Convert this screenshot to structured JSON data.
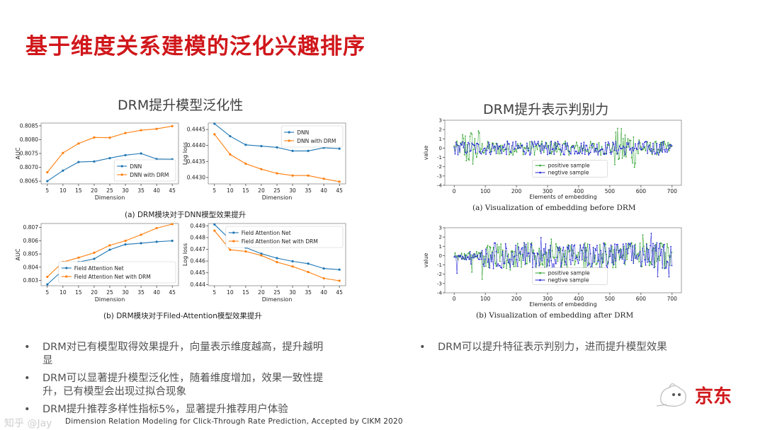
{
  "slide": {
    "title": "基于维度关系建模的泛化兴趣排序",
    "left_title": "DRM提升模型泛化性",
    "right_title": "DRM提升表示判别力",
    "caption_a_left": "(a) DRM模块对于DNN模型效果提升",
    "caption_b_left": "(b) DRM模块对于Filed-Attention模型效果提升",
    "caption_a_right": "(a) Visualization of embedding before DRM",
    "caption_b_right": "(b) Visualization of embedding after DRM",
    "bullets_left": [
      "DRM对已有模型取得效果提升，向量表示维度越高，提升越明显",
      "DRM可以显著提升模型泛化性，随着维度增加，效果一致性提升，已有模型会出现过拟合现象",
      "DRM提升推荐多样性指标5%，显著提升推荐用户体验"
    ],
    "bullets_right": [
      "DRM可以提升特征表示判别力，进而提升模型效果"
    ],
    "bullet_symbol": "•",
    "citation": "Dimension Relation Modeling for Click-Through Rate Prediction,  Accepted by CIKM 2020",
    "logo_text": "京东",
    "watermark": "知乎 @Jay"
  },
  "colors": {
    "title_red": "#d0171b",
    "base_blue": "#1f77b4",
    "drm_orange": "#ff7f0e",
    "pos_green": "#2ca02c",
    "neg_blue": "#1f1fd6"
  },
  "chart_data": [
    {
      "type": "line",
      "id": "dnn-auc",
      "x": [
        5,
        10,
        15,
        20,
        25,
        30,
        35,
        40,
        45
      ],
      "xlabel": "Dimension",
      "ylabel": "AUC",
      "ylim": [
        0.8064,
        0.8086
      ],
      "yticks": [
        "0.8065",
        "0.8070",
        "0.8075",
        "0.8080",
        "0.8085"
      ],
      "xticks": [
        "5",
        "10",
        "15",
        "20",
        "25",
        "30",
        "35",
        "40",
        "45"
      ],
      "series": [
        {
          "name": "DNN",
          "values": [
            0.8065,
            0.80688,
            0.80719,
            0.80721,
            0.80733,
            0.80744,
            0.8075,
            0.8073,
            0.80729
          ]
        },
        {
          "name": "DNN with DRM",
          "values": [
            0.80682,
            0.80752,
            0.80786,
            0.80808,
            0.80807,
            0.80824,
            0.80834,
            0.80839,
            0.80849
          ]
        }
      ],
      "legend": "lower-right"
    },
    {
      "type": "line",
      "id": "dnn-logloss",
      "x": [
        5,
        10,
        15,
        20,
        25,
        30,
        35,
        40,
        45
      ],
      "xlabel": "Dimension",
      "ylabel": "Log loss",
      "ylim": [
        0.4428,
        0.4447
      ],
      "yticks": [
        "0.4430",
        "0.4435",
        "0.4440",
        "0.4445"
      ],
      "xticks": [
        "5",
        "10",
        "15",
        "20",
        "25",
        "30",
        "35",
        "40",
        "45"
      ],
      "series": [
        {
          "name": "DNN",
          "values": [
            0.44468,
            0.44429,
            0.44402,
            0.44398,
            0.44394,
            0.44383,
            0.44383,
            0.44393,
            0.4439
          ]
        },
        {
          "name": "DNN with DRM",
          "values": [
            0.44435,
            0.44372,
            0.44343,
            0.44326,
            0.44313,
            0.44306,
            0.44306,
            0.44296,
            0.44287
          ]
        }
      ],
      "legend": "top-right"
    },
    {
      "type": "line",
      "id": "fa-auc",
      "x": [
        5,
        10,
        15,
        20,
        25,
        30,
        35,
        40,
        45
      ],
      "xlabel": "Dimension",
      "ylabel": "AUC",
      "ylim": [
        0.8026,
        0.8073
      ],
      "yticks": [
        "0.803",
        "0.804",
        "0.805",
        "0.806",
        "0.807"
      ],
      "xticks": [
        "5",
        "10",
        "15",
        "20",
        "25",
        "30",
        "35",
        "40",
        "45"
      ],
      "series": [
        {
          "name": "Field Attention Net",
          "values": [
            0.8027,
            0.80378,
            0.80439,
            0.80463,
            0.80532,
            0.80572,
            0.80581,
            0.80592,
            0.80599
          ]
        },
        {
          "name": "Field Attention Net with DRM",
          "values": [
            0.80327,
            0.80439,
            0.80472,
            0.80509,
            0.80565,
            0.80599,
            0.80645,
            0.80695,
            0.80725
          ]
        }
      ],
      "legend": "lower-right"
    },
    {
      "type": "line",
      "id": "fa-logloss",
      "x": [
        5,
        10,
        15,
        20,
        25,
        30,
        35,
        40,
        45
      ],
      "xlabel": "Dimension",
      "ylabel": "Log loss",
      "ylim": [
        0.4439,
        0.4492
      ],
      "yticks": [
        "0.444",
        "0.445",
        "0.446",
        "0.447",
        "0.448",
        "0.449"
      ],
      "xticks": [
        "5",
        "10",
        "15",
        "20",
        "25",
        "30",
        "35",
        "40",
        "45"
      ],
      "series": [
        {
          "name": "Field Attention Net",
          "values": [
            0.44912,
            0.44782,
            0.44715,
            0.44663,
            0.44625,
            0.44598,
            0.44578,
            0.44537,
            0.44527
          ]
        },
        {
          "name": "Field Attention Net with DRM",
          "values": [
            0.44859,
            0.44696,
            0.44682,
            0.44648,
            0.44591,
            0.44554,
            0.44507,
            0.44453,
            0.44432
          ]
        }
      ],
      "legend": "top-right"
    },
    {
      "type": "scatter",
      "id": "embedding-before",
      "xlabel": "Elements of embedding",
      "ylabel": "value",
      "xlim": [
        -30,
        730
      ],
      "ylim": [
        -4,
        3
      ],
      "xticks": [
        "0",
        "100",
        "200",
        "300",
        "400",
        "500",
        "600",
        "700"
      ],
      "yticks": [
        "-4",
        "-3",
        "-2",
        "-1",
        "0",
        "1",
        "2",
        "3"
      ],
      "n_points": 700,
      "series": [
        {
          "name": "positive sample",
          "amplitude_profile": "large spikes near 30-80 and 520-600, otherwise ~±0.8"
        },
        {
          "name": "negtive sample",
          "amplitude_profile": "~±0.8 across all elements"
        }
      ],
      "legend": "lower-center"
    },
    {
      "type": "scatter",
      "id": "embedding-after",
      "xlabel": "Elements of embedding",
      "ylabel": "value",
      "xlim": [
        -30,
        730
      ],
      "ylim": [
        -4,
        3
      ],
      "xticks": [
        "0",
        "100",
        "200",
        "300",
        "400",
        "500",
        "600",
        "700"
      ],
      "yticks": [
        "-4",
        "-3",
        "-2",
        "-1",
        "0",
        "1",
        "2",
        "3"
      ],
      "n_points": 700,
      "series": [
        {
          "name": "positive sample",
          "amplitude_profile": "~±1.5 with spikes to ±2.5 across 100-700"
        },
        {
          "name": "negtive sample",
          "amplitude_profile": "~±1.5 with spikes to ±2.5 across 100-700"
        }
      ],
      "legend": "lower-center"
    }
  ]
}
